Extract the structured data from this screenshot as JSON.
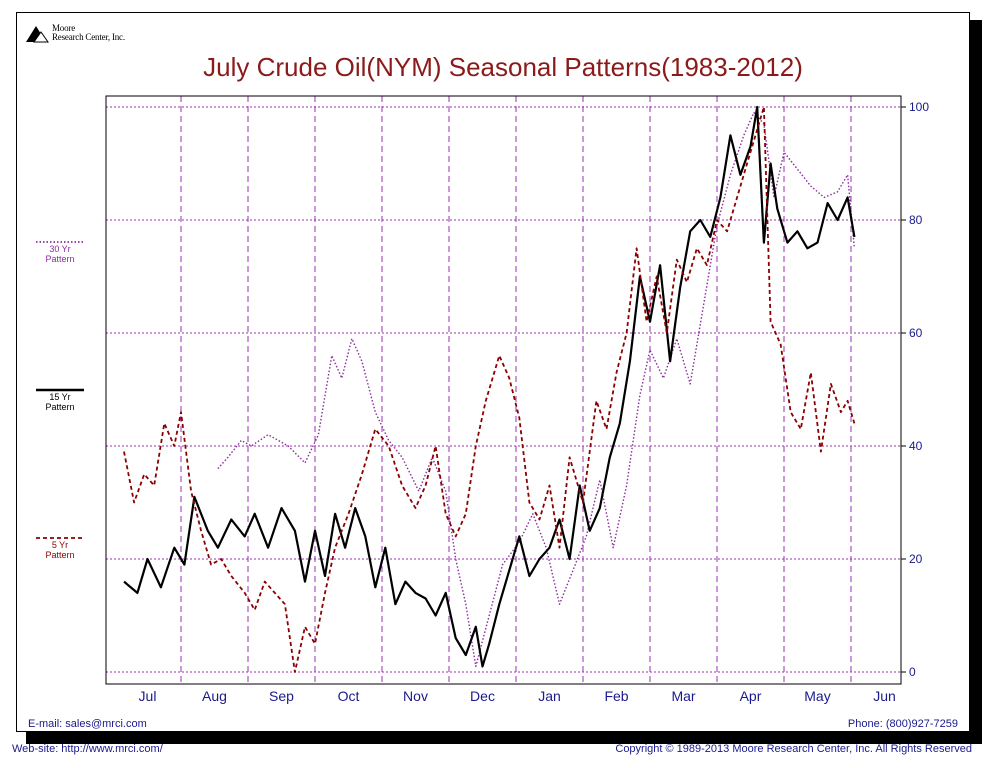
{
  "brand": {
    "logo_line1": "Moore",
    "logo_line2": "Research Center, Inc.",
    "logo_icon": "mountain-logo-icon"
  },
  "footer": {
    "email": "E-mail: sales@mrci.com",
    "phone": "Phone: (800)927-7259",
    "website": "Web-site: http://www.mrci.com/",
    "copyright": "Copyright © 1989-2013 Moore Research Center, Inc. All Rights Reserved"
  },
  "chart_data": {
    "type": "line",
    "title": "July Crude Oil(NYM) Seasonal Patterns(1983-2012)",
    "xlabel": "",
    "ylabel": "",
    "ylim": [
      0,
      100
    ],
    "yticks": [
      0,
      20,
      40,
      60,
      80,
      100
    ],
    "categories": [
      "Jul",
      "Aug",
      "Sep",
      "Oct",
      "Nov",
      "Dec",
      "Jan",
      "Feb",
      "Mar",
      "Apr",
      "May",
      "Jun"
    ],
    "grid": true,
    "legend_position": "left",
    "colors": {
      "title": "#8b1a1a",
      "grid": "#9b30b0",
      "axis_labels": "#1a1a8c",
      "s30": "#8b2b9e",
      "s15": "#000000",
      "s5": "#8b0000"
    },
    "series": [
      {
        "name_line1": "30 Yr",
        "name_line2": "Pattern",
        "style": "dotted",
        "x": [
          1.55,
          1.7,
          1.9,
          2.05,
          2.3,
          2.6,
          2.85,
          3.05,
          3.25,
          3.4,
          3.55,
          3.7,
          3.9,
          4.1,
          4.3,
          4.55,
          4.75,
          4.95,
          5.1,
          5.25,
          5.4,
          5.6,
          5.8,
          6.05,
          6.25,
          6.45,
          6.65,
          6.85,
          7.05,
          7.25,
          7.45,
          7.65,
          7.85,
          8.0,
          8.2,
          8.4,
          8.6,
          8.8,
          9.0,
          9.2,
          9.4,
          9.55,
          9.7,
          9.85,
          10.0,
          10.2,
          10.4,
          10.6,
          10.8,
          10.95,
          11.05
        ],
        "values": [
          36,
          38,
          41,
          40,
          42,
          40,
          37,
          42,
          56,
          52,
          59,
          55,
          46,
          41,
          38,
          32,
          38,
          32,
          20,
          12,
          1,
          10,
          19,
          23,
          28,
          22,
          12,
          18,
          24,
          34,
          22,
          33,
          49,
          57,
          52,
          59,
          51,
          65,
          79,
          88,
          95,
          99,
          97,
          84,
          92,
          89,
          86,
          84,
          85,
          88,
          75
        ]
      },
      {
        "name_line1": "15 Yr",
        "name_line2": "Pattern",
        "style": "solid",
        "x": [
          0.15,
          0.35,
          0.5,
          0.7,
          0.9,
          1.05,
          1.2,
          1.4,
          1.55,
          1.75,
          1.95,
          2.1,
          2.3,
          2.5,
          2.7,
          2.85,
          3.0,
          3.15,
          3.3,
          3.45,
          3.6,
          3.75,
          3.9,
          4.05,
          4.2,
          4.35,
          4.5,
          4.65,
          4.8,
          4.95,
          5.1,
          5.25,
          5.4,
          5.5,
          5.6,
          5.75,
          5.9,
          6.05,
          6.2,
          6.35,
          6.5,
          6.65,
          6.8,
          6.95,
          7.1,
          7.25,
          7.4,
          7.55,
          7.7,
          7.85,
          8.0,
          8.15,
          8.3,
          8.45,
          8.6,
          8.75,
          8.9,
          9.05,
          9.2,
          9.35,
          9.5,
          9.6,
          9.7,
          9.8,
          9.9,
          10.05,
          10.2,
          10.35,
          10.5,
          10.65,
          10.8,
          10.95,
          11.05
        ],
        "values": [
          16,
          14,
          20,
          15,
          22,
          19,
          31,
          25,
          22,
          27,
          24,
          28,
          22,
          29,
          25,
          16,
          25,
          17,
          28,
          22,
          29,
          24,
          15,
          22,
          12,
          16,
          14,
          13,
          10,
          14,
          6,
          3,
          8,
          1,
          5,
          12,
          18,
          24,
          17,
          20,
          22,
          27,
          20,
          33,
          25,
          29,
          38,
          44,
          55,
          70,
          62,
          72,
          55,
          68,
          78,
          80,
          77,
          84,
          95,
          88,
          93,
          100,
          76,
          90,
          82,
          76,
          78,
          75,
          76,
          83,
          80,
          84,
          77
        ]
      },
      {
        "name_line1": "5 Yr",
        "name_line2": "Pattern",
        "style": "dashed",
        "x": [
          0.15,
          0.3,
          0.45,
          0.6,
          0.75,
          0.9,
          1.0,
          1.15,
          1.3,
          1.45,
          1.6,
          1.75,
          1.95,
          2.1,
          2.25,
          2.4,
          2.55,
          2.7,
          2.85,
          3.0,
          3.15,
          3.3,
          3.5,
          3.7,
          3.9,
          4.1,
          4.3,
          4.5,
          4.65,
          4.8,
          4.95,
          5.1,
          5.25,
          5.4,
          5.55,
          5.75,
          5.9,
          6.05,
          6.2,
          6.35,
          6.5,
          6.65,
          6.8,
          7.0,
          7.2,
          7.35,
          7.5,
          7.65,
          7.8,
          7.95,
          8.1,
          8.25,
          8.4,
          8.55,
          8.7,
          8.85,
          9.0,
          9.15,
          9.3,
          9.45,
          9.6,
          9.7,
          9.8,
          9.95,
          10.1,
          10.25,
          10.4,
          10.55,
          10.7,
          10.85,
          10.95,
          11.05
        ],
        "values": [
          39,
          30,
          35,
          33,
          44,
          40,
          46,
          32,
          25,
          19,
          20,
          17,
          14,
          11,
          16,
          14,
          12,
          0,
          8,
          5,
          14,
          22,
          28,
          35,
          43,
          40,
          33,
          29,
          33,
          40,
          28,
          24,
          28,
          40,
          48,
          56,
          52,
          45,
          30,
          27,
          33,
          22,
          38,
          30,
          48,
          43,
          53,
          60,
          75,
          62,
          70,
          60,
          73,
          69,
          75,
          72,
          80,
          78,
          84,
          90,
          96,
          100,
          62,
          58,
          46,
          43,
          53,
          39,
          51,
          46,
          48,
          44
        ]
      }
    ]
  }
}
